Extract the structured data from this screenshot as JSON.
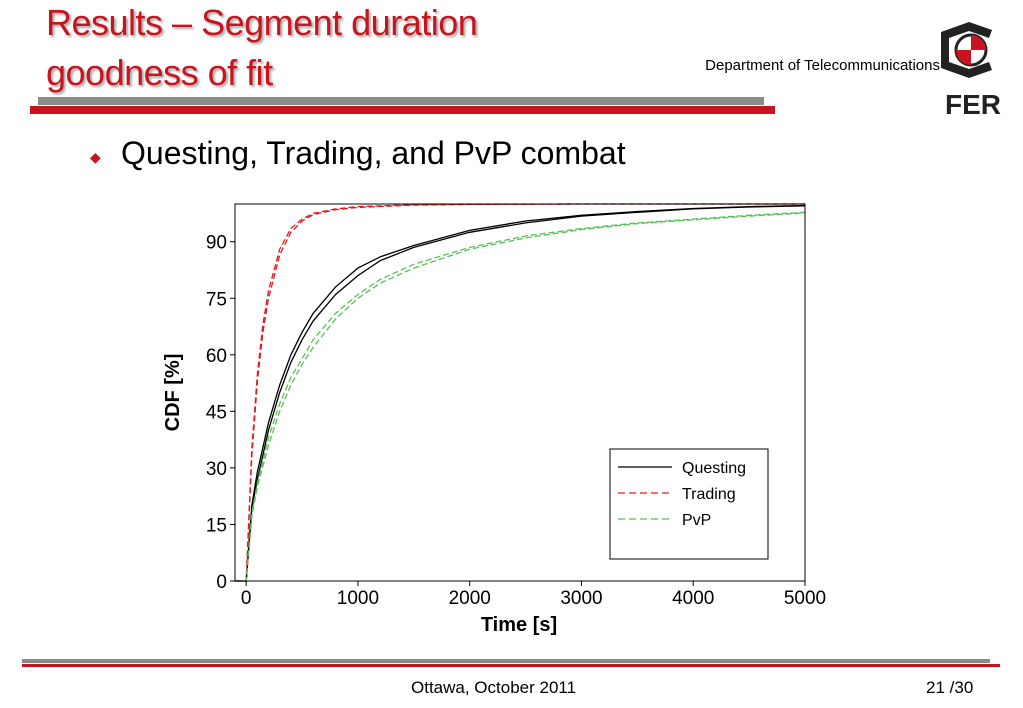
{
  "slide": {
    "title_line1": "Results – Segment duration",
    "title_line2": "goodness of fit",
    "department": "Department of Telecommunications",
    "logo_text": "FER",
    "bullet": "Questing, Trading, and PvP combat",
    "footer_left": "Ottawa, October 2011",
    "page_current": "21",
    "page_total": "/30",
    "colors": {
      "title": "#c8141e",
      "rule_gray": "#8a8a8a",
      "rule_red": "#c8141e"
    }
  },
  "chart_data": {
    "type": "line",
    "xlabel": "Time [s]",
    "ylabel": "CDF [%]",
    "xlim": [
      -100,
      5000
    ],
    "ylim": [
      0,
      100
    ],
    "xticks": [
      0,
      1000,
      2000,
      3000,
      4000,
      5000
    ],
    "yticks": [
      0,
      15,
      30,
      45,
      60,
      75,
      90
    ],
    "legend_position": "lower-right",
    "grid": false,
    "series": [
      {
        "name": "Questing",
        "color": "#000000",
        "dash": "solid",
        "x": [
          -100,
          0,
          50,
          100,
          200,
          300,
          400,
          500,
          600,
          800,
          1000,
          1200,
          1500,
          2000,
          2500,
          3000,
          3500,
          4000,
          4500,
          5000
        ],
        "y": [
          0,
          0,
          20,
          29,
          42,
          52,
          60,
          66,
          71,
          78,
          83,
          86,
          89,
          93,
          95.5,
          97,
          98,
          98.8,
          99.3,
          99.6
        ]
      },
      {
        "name": "",
        "color": "#000000",
        "dash": "solid",
        "x": [
          -100,
          0,
          50,
          100,
          200,
          300,
          400,
          500,
          600,
          800,
          1000,
          1200,
          1500,
          2000,
          2500,
          3000,
          3500,
          4000,
          4500,
          5000
        ],
        "y": [
          0,
          0,
          19,
          27,
          40,
          50,
          58,
          64,
          69,
          76,
          81,
          85,
          88.5,
          92.5,
          95,
          96.8,
          97.8,
          98.7,
          99.2,
          99.5
        ]
      },
      {
        "name": "Trading",
        "color": "#e31a1c",
        "dash": "dashed",
        "x": [
          -100,
          0,
          50,
          100,
          150,
          200,
          300,
          400,
          500,
          600,
          800,
          1000,
          1500,
          2000,
          3000,
          5000
        ],
        "y": [
          0,
          0,
          35,
          55,
          68,
          77,
          88,
          93.5,
          96,
          97.5,
          98.7,
          99.3,
          99.8,
          99.9,
          100,
          100
        ]
      },
      {
        "name": "",
        "color": "#e31a1c",
        "dash": "dashed",
        "x": [
          -100,
          0,
          50,
          100,
          150,
          200,
          300,
          400,
          500,
          600,
          800,
          1000,
          1500,
          2000,
          3000,
          5000
        ],
        "y": [
          0,
          0,
          33,
          53,
          66,
          75,
          86.5,
          92.5,
          95.5,
          97.2,
          98.5,
          99.1,
          99.7,
          99.9,
          100,
          100
        ]
      },
      {
        "name": "PvP",
        "color": "#55c155",
        "dash": "dashed",
        "x": [
          -100,
          0,
          50,
          100,
          200,
          300,
          400,
          500,
          600,
          800,
          1000,
          1200,
          1500,
          2000,
          2500,
          3000,
          3500,
          4000,
          4500,
          5000
        ],
        "y": [
          0,
          0,
          18,
          26,
          38,
          47,
          54,
          59,
          64,
          71,
          76,
          80,
          84,
          88.5,
          91.5,
          93.5,
          95,
          96,
          97,
          97.8
        ]
      },
      {
        "name": "",
        "color": "#55c155",
        "dash": "dashed",
        "x": [
          -100,
          0,
          50,
          100,
          200,
          300,
          400,
          500,
          600,
          800,
          1000,
          1200,
          1500,
          2000,
          2500,
          3000,
          3500,
          4000,
          4500,
          5000
        ],
        "y": [
          0,
          0,
          17,
          25,
          36,
          45,
          52,
          57.5,
          62,
          69.5,
          75,
          79,
          83,
          88,
          91,
          93.2,
          94.8,
          95.8,
          96.8,
          97.6
        ]
      }
    ]
  }
}
